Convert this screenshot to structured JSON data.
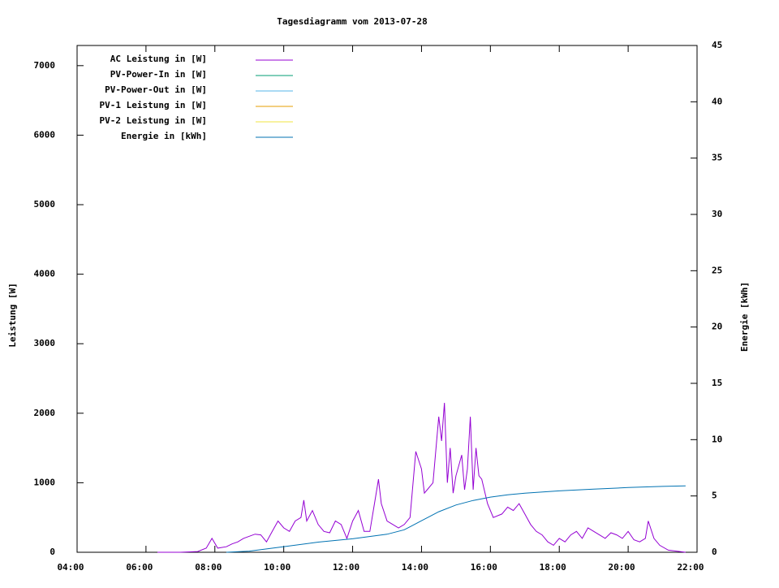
{
  "chart_data": {
    "type": "line",
    "title": "Tagesdiagramm vom 2013-07-28",
    "ylabel": "Leistung [W]",
    "y2label": "Energie [kWh]",
    "xlim": [
      "04:00",
      "22:00"
    ],
    "xticks": [
      "04:00",
      "06:00",
      "08:00",
      "10:00",
      "12:00",
      "14:00",
      "16:00",
      "18:00",
      "20:00",
      "22:00"
    ],
    "ylim": [
      0,
      7290
    ],
    "yticks": [
      0,
      1000,
      2000,
      3000,
      4000,
      5000,
      6000,
      7000
    ],
    "y2lim": [
      0,
      45
    ],
    "y2ticks": [
      0,
      5,
      10,
      15,
      20,
      25,
      30,
      35,
      40,
      45
    ],
    "legend": "top-left",
    "series": [
      {
        "name": "AC Leistung in [W]",
        "color": "#9400d3",
        "x": [
          "06:20",
          "07:00",
          "07:30",
          "07:45",
          "07:55",
          "08:05",
          "08:20",
          "08:30",
          "08:40",
          "08:50",
          "09:00",
          "09:10",
          "09:20",
          "09:30",
          "09:40",
          "09:50",
          "10:00",
          "10:10",
          "10:20",
          "10:30",
          "10:35",
          "10:40",
          "10:50",
          "11:00",
          "11:10",
          "11:20",
          "11:30",
          "11:40",
          "11:50",
          "12:00",
          "12:10",
          "12:20",
          "12:30",
          "12:40",
          "12:45",
          "12:50",
          "13:00",
          "13:10",
          "13:20",
          "13:30",
          "13:40",
          "13:50",
          "14:00",
          "14:05",
          "14:10",
          "14:20",
          "14:30",
          "14:35",
          "14:40",
          "14:45",
          "14:50",
          "14:55",
          "15:00",
          "15:10",
          "15:15",
          "15:20",
          "15:25",
          "15:30",
          "15:35",
          "15:40",
          "15:45",
          "15:55",
          "16:05",
          "16:20",
          "16:30",
          "16:40",
          "16:50",
          "17:00",
          "17:10",
          "17:20",
          "17:30",
          "17:40",
          "17:50",
          "18:00",
          "18:10",
          "18:20",
          "18:30",
          "18:40",
          "18:50",
          "19:00",
          "19:10",
          "19:20",
          "19:30",
          "19:40",
          "19:50",
          "20:00",
          "20:10",
          "20:20",
          "20:30",
          "20:35",
          "20:45",
          "20:55",
          "21:10",
          "21:30",
          "21:40"
        ],
        "values": [
          0,
          0,
          10,
          60,
          200,
          60,
          80,
          120,
          150,
          200,
          230,
          260,
          250,
          150,
          300,
          450,
          350,
          300,
          450,
          500,
          750,
          450,
          600,
          400,
          300,
          280,
          450,
          400,
          200,
          450,
          600,
          300,
          300,
          800,
          1050,
          700,
          450,
          400,
          350,
          400,
          500,
          1450,
          1200,
          850,
          900,
          1000,
          1950,
          1600,
          2150,
          1000,
          1500,
          850,
          1100,
          1400,
          900,
          1200,
          1950,
          900,
          1500,
          1100,
          1050,
          700,
          500,
          550,
          650,
          600,
          700,
          550,
          400,
          300,
          250,
          150,
          100,
          200,
          150,
          250,
          300,
          200,
          350,
          300,
          250,
          200,
          280,
          250,
          200,
          300,
          180,
          150,
          200,
          450,
          200,
          100,
          30,
          10,
          0
        ]
      },
      {
        "name": "PV-Power-In in [W]",
        "color": "#009e73",
        "x": [],
        "values": []
      },
      {
        "name": "PV-Power-Out in [W]",
        "color": "#56b4e9",
        "x": [],
        "values": []
      },
      {
        "name": "PV-1 Leistung in [W]",
        "color": "#e69f00",
        "x": [],
        "values": []
      },
      {
        "name": "PV-2 Leistung in [W]",
        "color": "#f0e442",
        "x": [],
        "values": []
      },
      {
        "name": "Energie in [kWh]",
        "color": "#0072b2",
        "axis": "y2",
        "x": [
          "08:20",
          "09:00",
          "10:00",
          "11:00",
          "12:00",
          "13:00",
          "13:30",
          "14:00",
          "14:30",
          "15:00",
          "15:30",
          "16:00",
          "16:30",
          "17:00",
          "18:00",
          "19:00",
          "20:00",
          "21:00",
          "21:40"
        ],
        "values": [
          0,
          0.1,
          0.5,
          0.9,
          1.2,
          1.6,
          2.0,
          2.8,
          3.6,
          4.2,
          4.6,
          4.9,
          5.1,
          5.25,
          5.45,
          5.6,
          5.75,
          5.85,
          5.9
        ]
      }
    ]
  }
}
